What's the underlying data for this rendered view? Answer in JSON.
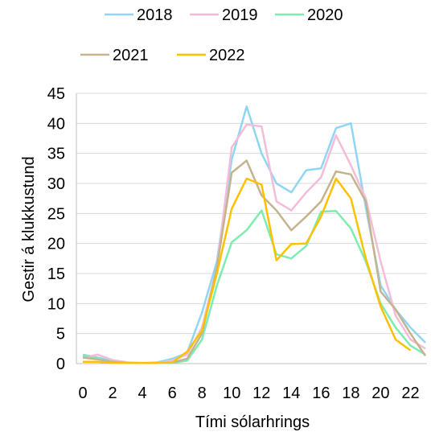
{
  "chart_data": {
    "type": "line",
    "xlabel": "Tími sólarhrings",
    "ylabel": "Gestir á klukkustund",
    "xlim": [
      0,
      23
    ],
    "ylim": [
      0,
      45
    ],
    "x_ticks": [
      0,
      2,
      4,
      6,
      8,
      10,
      12,
      14,
      16,
      18,
      20,
      22
    ],
    "y_ticks": [
      0,
      5,
      10,
      15,
      20,
      25,
      30,
      35,
      40,
      45
    ],
    "grid": "horizontal",
    "legend_position": "top",
    "x": [
      0,
      1,
      2,
      3,
      4,
      5,
      6,
      7,
      8,
      9,
      10,
      11,
      12,
      13,
      14,
      15,
      16,
      17,
      18,
      19,
      20,
      21,
      22,
      23
    ],
    "series": [
      {
        "name": "2018",
        "color": "#8fd6f4",
        "values": [
          1.5,
          1.0,
          0.5,
          0.2,
          0.1,
          0.2,
          0.8,
          1.8,
          8.5,
          17,
          34,
          42.8,
          35,
          30,
          28.5,
          32.2,
          32.5,
          39.2,
          40,
          26,
          13,
          9,
          6,
          3.5
        ]
      },
      {
        "name": "2019",
        "color": "#f4bcd8",
        "values": [
          1.0,
          1.5,
          0.6,
          0.2,
          0.1,
          0.1,
          0.5,
          1.5,
          6,
          16,
          36,
          39.8,
          39.5,
          27,
          25.5,
          28.5,
          31,
          38,
          33,
          27.5,
          17,
          8,
          4,
          2.5
        ]
      },
      {
        "name": "2020",
        "color": "#7cedb0",
        "values": [
          1.3,
          0.8,
          0.3,
          0.1,
          0.1,
          0.1,
          0.1,
          0.5,
          4,
          13,
          20.2,
          22.2,
          25.5,
          18.2,
          17.5,
          19.6,
          25.3,
          25.4,
          22.5,
          17,
          10,
          6,
          3,
          1.5
        ]
      },
      {
        "name": "2021",
        "color": "#c4b48e",
        "values": [
          1.0,
          0.7,
          0.3,
          0.1,
          0.1,
          0.1,
          0.2,
          0.8,
          5,
          16,
          31.8,
          33.8,
          28,
          25.5,
          22.2,
          24.5,
          27,
          32,
          31.5,
          27,
          12,
          9,
          5,
          1.3
        ]
      },
      {
        "name": "2022",
        "color": "#ffc000",
        "values": [
          0.3,
          0.3,
          0.1,
          0.1,
          0.1,
          0.1,
          0.2,
          2.0,
          5.5,
          15,
          25.8,
          30.8,
          29.8,
          17.2,
          19.9,
          20,
          24.5,
          30.8,
          27.5,
          17.5,
          9.5,
          4,
          2.2,
          null
        ]
      }
    ]
  }
}
